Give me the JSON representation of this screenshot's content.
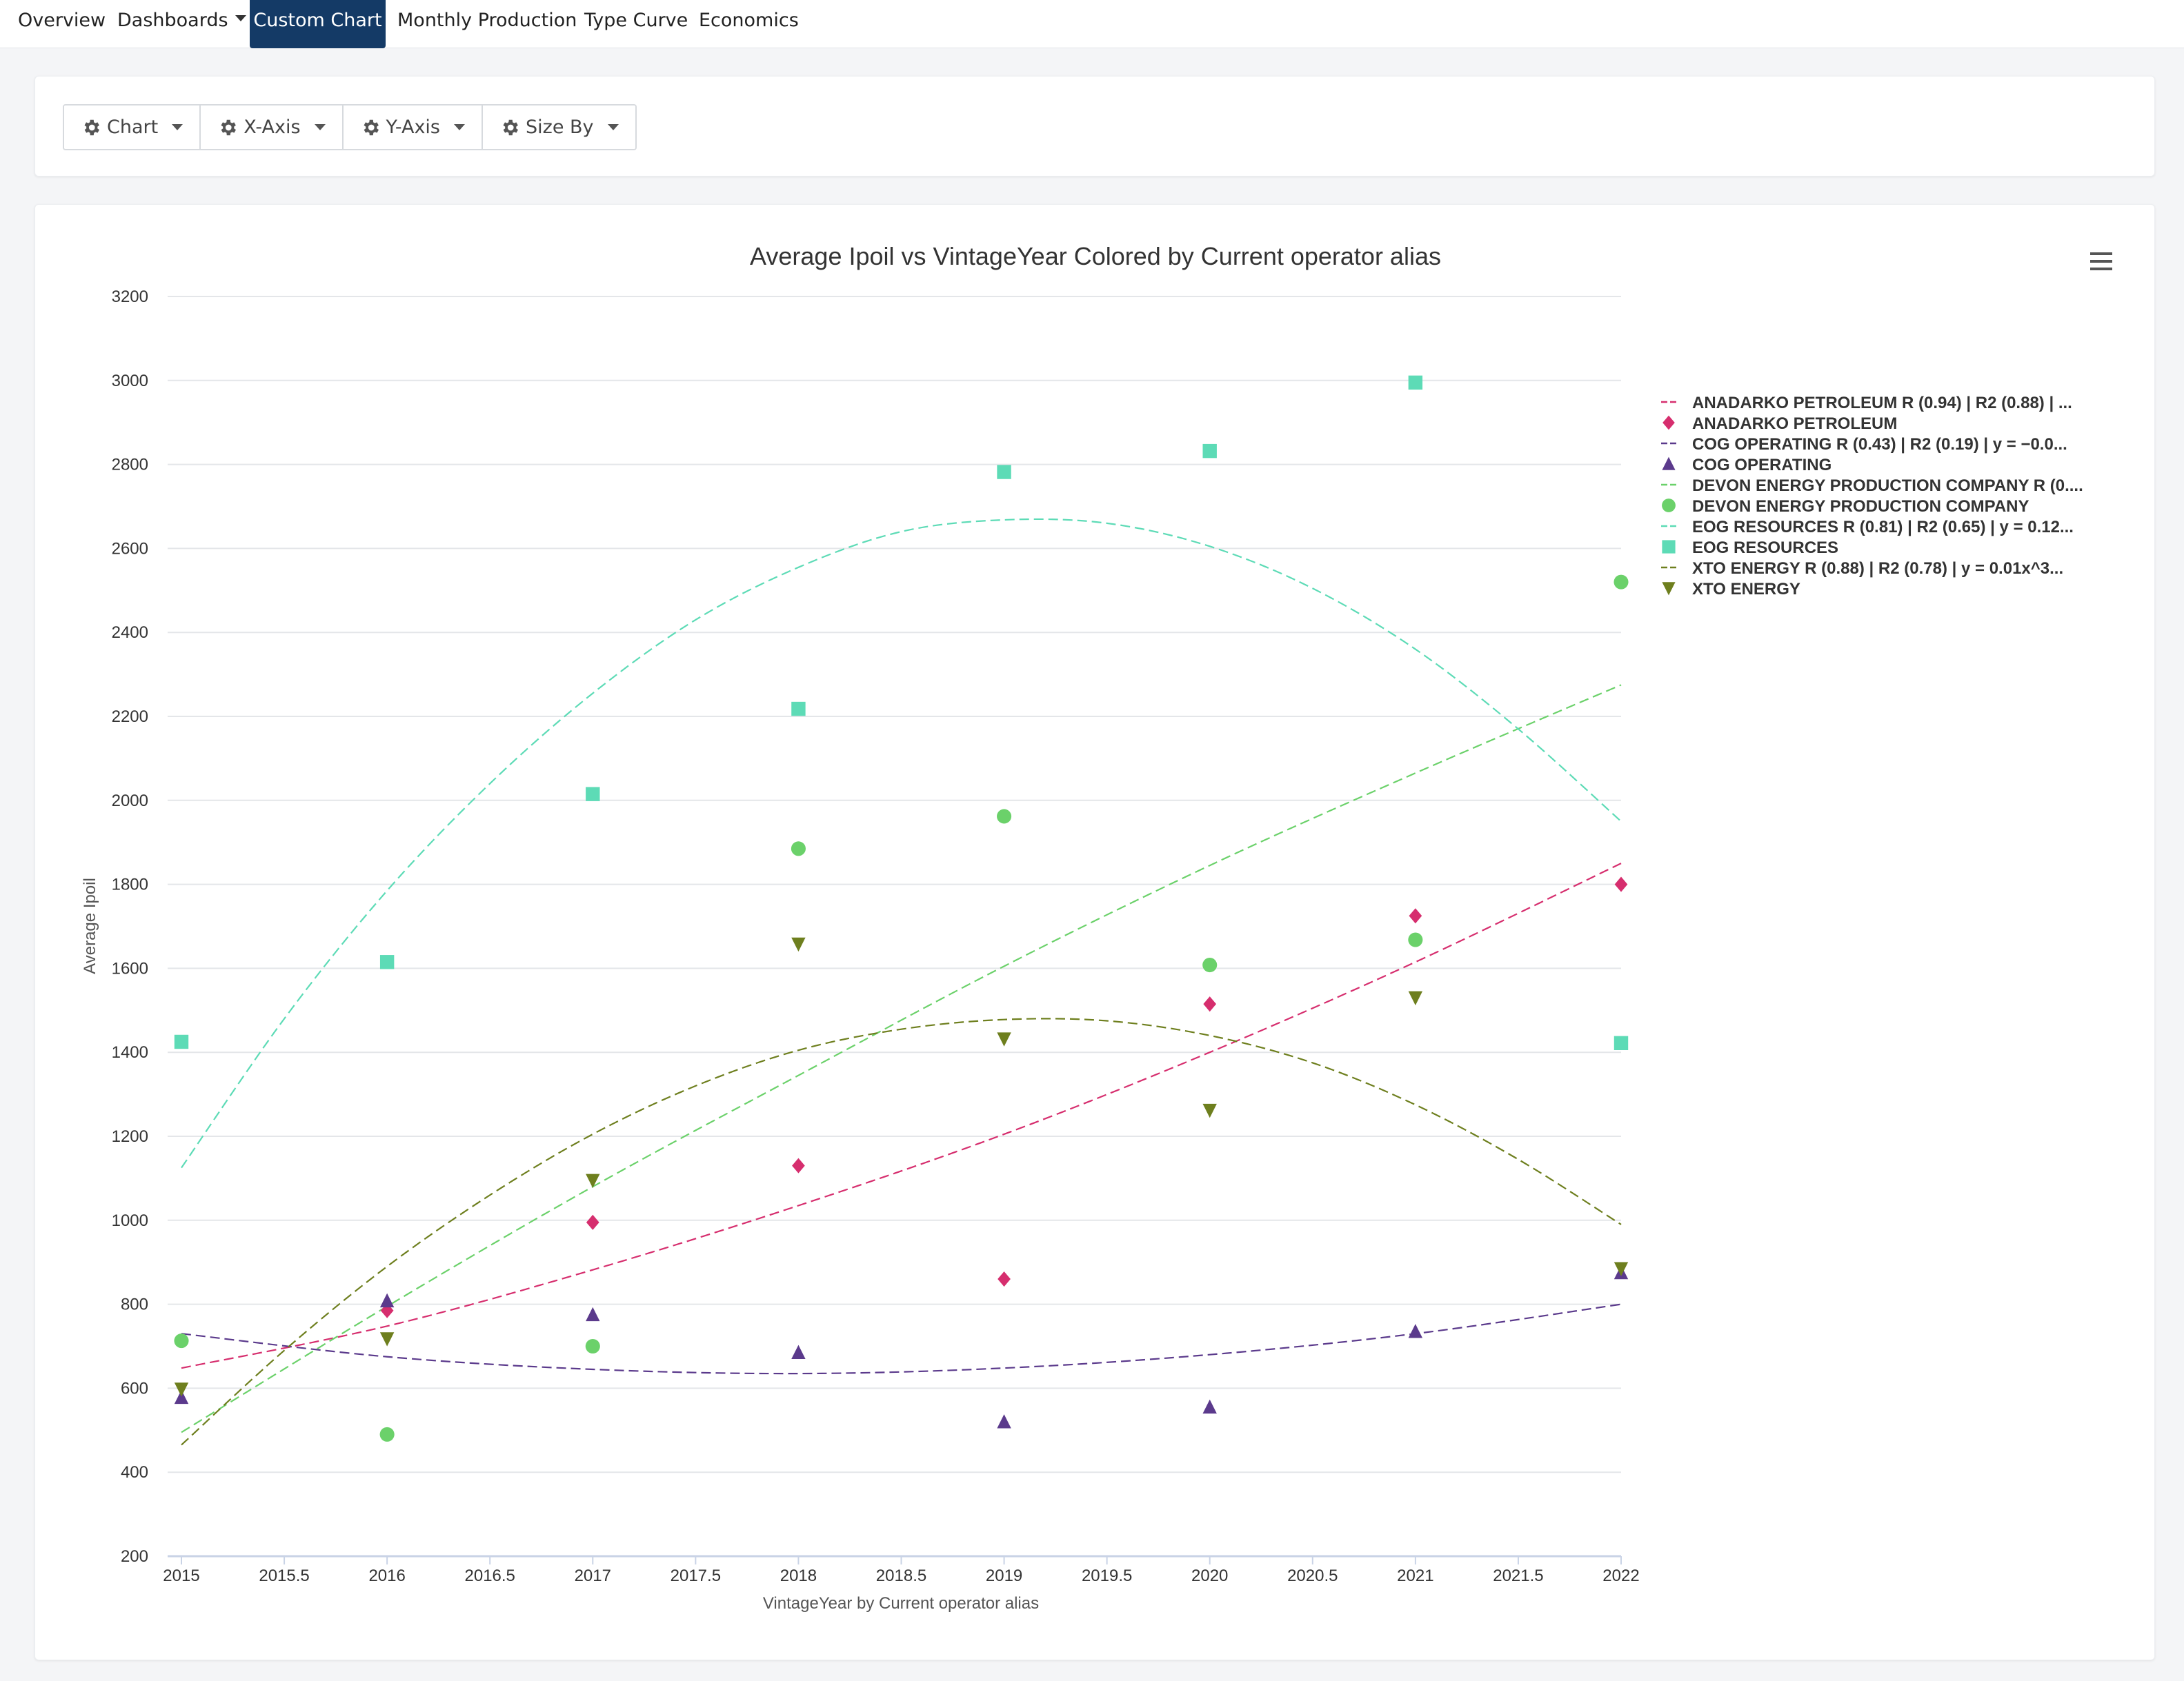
{
  "nav": {
    "tabs": [
      {
        "label": "Overview"
      },
      {
        "label": "Dashboards",
        "dropdown": true
      },
      {
        "label": "Custom Chart",
        "active": true
      },
      {
        "label": "Monthly Production"
      },
      {
        "label": "Type Curve"
      },
      {
        "label": "Economics"
      }
    ]
  },
  "toolbar": {
    "buttons": [
      {
        "label": "Chart",
        "icon": "gear-icon"
      },
      {
        "label": "X-Axis",
        "icon": "gear-icon"
      },
      {
        "label": "Y-Axis",
        "icon": "gear-icon"
      },
      {
        "label": "Size By",
        "icon": "gear-icon"
      }
    ]
  },
  "chart_menu_icon": "hamburger-menu-icon",
  "chart_data": {
    "type": "scatter",
    "title": "Average Ipoil vs VintageYear Colored by Current operator alias",
    "xlabel": "VintageYear by Current operator alias",
    "ylabel": "Average Ipoil",
    "xlim": [
      2015,
      2022
    ],
    "ylim": [
      200,
      3200
    ],
    "xticks": [
      "2015",
      "2015.5",
      "2016",
      "2016.5",
      "2017",
      "2017.5",
      "2018",
      "2018.5",
      "2019",
      "2019.5",
      "2020",
      "2020.5",
      "2021",
      "2021.5",
      "2022"
    ],
    "yticks": [
      "200",
      "400",
      "600",
      "800",
      "1000",
      "1200",
      "1400",
      "1600",
      "1800",
      "2000",
      "2200",
      "2400",
      "2600",
      "2800",
      "3000",
      "3200"
    ],
    "grid": true,
    "legend_position": "right",
    "series": [
      {
        "name": "ANADARKO PETROLEUM",
        "color": "#d62e6e",
        "marker": "diamond",
        "trend_label": "ANADARKO PETROLEUM R (0.94) | R2 (0.88) | ...",
        "points": [
          [
            2016,
            785
          ],
          [
            2017,
            995
          ],
          [
            2018,
            1130
          ],
          [
            2019,
            860
          ],
          [
            2020,
            1515
          ],
          [
            2021,
            1725
          ],
          [
            2022,
            1800
          ]
        ],
        "trend": [
          [
            2015,
            648
          ],
          [
            2016,
            748
          ],
          [
            2017,
            882
          ],
          [
            2018,
            1035
          ],
          [
            2019,
            1205
          ],
          [
            2020,
            1400
          ],
          [
            2021,
            1615
          ],
          [
            2022,
            1850
          ]
        ]
      },
      {
        "name": "COG OPERATING",
        "color": "#5b3a8c",
        "marker": "triangle-up",
        "trend_label": "COG OPERATING R (0.43) | R2 (0.19) | y = −0.0...",
        "points": [
          [
            2015,
            578
          ],
          [
            2016,
            808
          ],
          [
            2017,
            775
          ],
          [
            2018,
            685
          ],
          [
            2019,
            520
          ],
          [
            2020,
            555
          ],
          [
            2021,
            735
          ],
          [
            2022,
            875
          ]
        ],
        "trend": [
          [
            2015,
            730
          ],
          [
            2016,
            675
          ],
          [
            2017,
            645
          ],
          [
            2018,
            635
          ],
          [
            2019,
            648
          ],
          [
            2020,
            680
          ],
          [
            2021,
            730
          ],
          [
            2022,
            800
          ]
        ]
      },
      {
        "name": "DEVON ENERGY PRODUCTION COMPANY",
        "color": "#6bd16a",
        "marker": "circle",
        "trend_label": "DEVON ENERGY PRODUCTION COMPANY R (0....",
        "points": [
          [
            2015,
            713
          ],
          [
            2016,
            490
          ],
          [
            2017,
            700
          ],
          [
            2018,
            1885
          ],
          [
            2019,
            1962
          ],
          [
            2020,
            1608
          ],
          [
            2021,
            1668
          ],
          [
            2022,
            2520
          ]
        ],
        "trend": [
          [
            2015,
            495
          ],
          [
            2016,
            795
          ],
          [
            2017,
            1080
          ],
          [
            2018,
            1345
          ],
          [
            2019,
            1605
          ],
          [
            2020,
            1845
          ],
          [
            2021,
            2065
          ],
          [
            2022,
            2275
          ]
        ]
      },
      {
        "name": "EOG RESOURCES",
        "color": "#5ddbb6",
        "marker": "square",
        "trend_label": "EOG RESOURCES R (0.81) | R2 (0.65) | y = 0.12...",
        "points": [
          [
            2015,
            1425
          ],
          [
            2016,
            1615
          ],
          [
            2017,
            2015
          ],
          [
            2018,
            2218
          ],
          [
            2019,
            2782
          ],
          [
            2020,
            2832
          ],
          [
            2021,
            2995
          ],
          [
            2022,
            1422
          ]
        ],
        "trend": [
          [
            2015,
            1125
          ],
          [
            2015.5,
            1480
          ],
          [
            2016,
            1785
          ],
          [
            2016.5,
            2040
          ],
          [
            2017,
            2255
          ],
          [
            2017.5,
            2430
          ],
          [
            2018,
            2555
          ],
          [
            2018.5,
            2640
          ],
          [
            2019,
            2668
          ],
          [
            2019.5,
            2660
          ],
          [
            2020,
            2605
          ],
          [
            2020.5,
            2505
          ],
          [
            2021,
            2360
          ],
          [
            2021.5,
            2170
          ],
          [
            2022,
            1950
          ]
        ]
      },
      {
        "name": "XTO ENERGY",
        "color": "#6e7f1e",
        "marker": "triangle-down",
        "trend_label": "XTO ENERGY R (0.88) | R2 (0.78) | y = 0.01x^3...",
        "points": [
          [
            2015,
            598
          ],
          [
            2016,
            718
          ],
          [
            2017,
            1095
          ],
          [
            2018,
            1658
          ],
          [
            2019,
            1432
          ],
          [
            2020,
            1262
          ],
          [
            2021,
            1530
          ],
          [
            2022,
            885
          ]
        ],
        "trend": [
          [
            2015,
            465
          ],
          [
            2015.5,
            690
          ],
          [
            2016,
            890
          ],
          [
            2016.5,
            1060
          ],
          [
            2017,
            1205
          ],
          [
            2017.5,
            1320
          ],
          [
            2018,
            1405
          ],
          [
            2018.5,
            1455
          ],
          [
            2019,
            1478
          ],
          [
            2019.5,
            1475
          ],
          [
            2020,
            1440
          ],
          [
            2020.5,
            1375
          ],
          [
            2021,
            1275
          ],
          [
            2021.5,
            1145
          ],
          [
            2022,
            990
          ]
        ]
      }
    ]
  }
}
